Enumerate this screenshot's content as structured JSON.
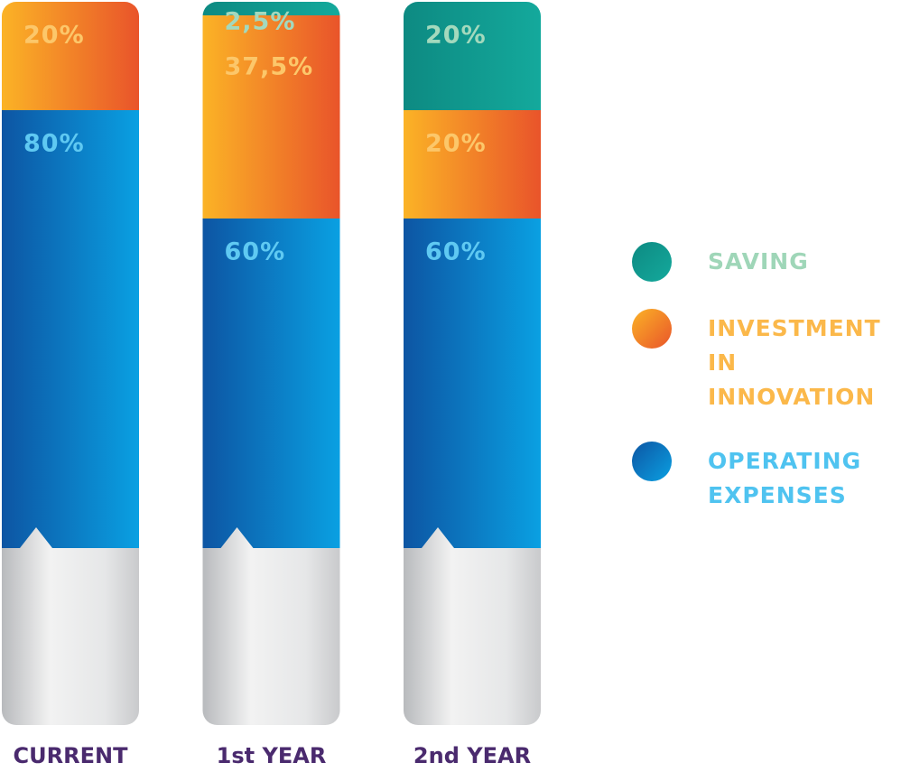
{
  "chart_data": {
    "type": "stacked-bar",
    "categories": [
      "CURRENT",
      "1st YEAR",
      "2nd YEAR"
    ],
    "series": [
      {
        "name": "SAVING",
        "color": "#14a99c",
        "values": [
          0,
          2.5,
          20
        ],
        "value_labels": [
          null,
          "2,5%",
          "20%"
        ]
      },
      {
        "name": "INVESTMENT IN INNOVATION",
        "color": "#e9542a",
        "values": [
          20,
          37.5,
          20
        ],
        "value_labels": [
          "20%",
          "37,5%",
          "20%"
        ]
      },
      {
        "name": "OPERATING EXPENSES",
        "color": "#0aa0e2",
        "values": [
          80,
          60,
          60
        ],
        "value_labels": [
          "80%",
          "60%",
          "60%"
        ]
      }
    ]
  }
}
